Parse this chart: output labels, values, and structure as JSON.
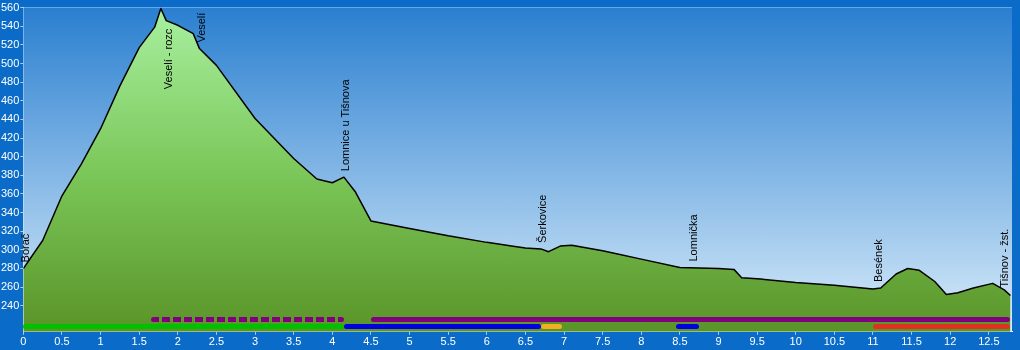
{
  "chart_data": {
    "type": "area",
    "xlim": [
      0,
      12.8
    ],
    "ylim": [
      212,
      560
    ],
    "xticks": [
      0,
      0.5,
      1,
      1.5,
      2,
      2.5,
      3,
      3.5,
      4,
      4.5,
      5,
      5.5,
      6,
      6.5,
      7,
      7.5,
      8,
      8.5,
      9,
      9.5,
      10,
      10.5,
      11,
      11.5,
      12,
      12.5
    ],
    "yticks": [
      240,
      260,
      280,
      300,
      320,
      340,
      360,
      380,
      400,
      420,
      440,
      460,
      480,
      500,
      520,
      540,
      560
    ],
    "grid": true,
    "series": [
      {
        "color": "#7cc85a",
        "x": [
          0,
          0.25,
          0.5,
          0.75,
          1,
          1.25,
          1.5,
          1.7,
          1.78,
          1.85,
          2,
          2.2,
          2.28,
          2.5,
          3,
          3.5,
          3.8,
          4,
          4.15,
          4.3,
          4.5,
          5,
          5.5,
          6,
          6.5,
          6.7,
          6.8,
          6.95,
          7.1,
          7.5,
          8,
          8.5,
          9,
          9.2,
          9.3,
          9.5,
          10,
          10.5,
          11,
          11.1,
          11.3,
          11.45,
          11.6,
          11.8,
          11.95,
          12.1,
          12.3,
          12.55,
          12.7,
          12.78
        ],
        "values": [
          280,
          310,
          358,
          392,
          430,
          476,
          517,
          539,
          559,
          546,
          541,
          532,
          516,
          498,
          441,
          398,
          376,
          372,
          378,
          362,
          331,
          323,
          315,
          308,
          302,
          301,
          298,
          304,
          305,
          299,
          290,
          281,
          280,
          279,
          270,
          269,
          265,
          262,
          258,
          259,
          274,
          280,
          278,
          266,
          252,
          254,
          259,
          264,
          257,
          251
        ]
      }
    ],
    "annotations": [
      {
        "text": "Borač",
        "x": 0,
        "y": 280
      },
      {
        "text": "Veselí - rozc",
        "x": 1.85,
        "y": 546
      },
      {
        "text": "Veselí",
        "x": 2.28,
        "y": 516
      },
      {
        "text": "Lomnice u Tišnova",
        "x": 4.15,
        "y": 378
      },
      {
        "text": "Šerkovice",
        "x": 6.7,
        "y": 301
      },
      {
        "text": "Lomnička",
        "x": 8.65,
        "y": 281
      },
      {
        "text": "Besének",
        "x": 11.05,
        "y": 259
      },
      {
        "text": "Tišnov - žst.",
        "x": 12.75,
        "y": 253
      }
    ]
  }
}
